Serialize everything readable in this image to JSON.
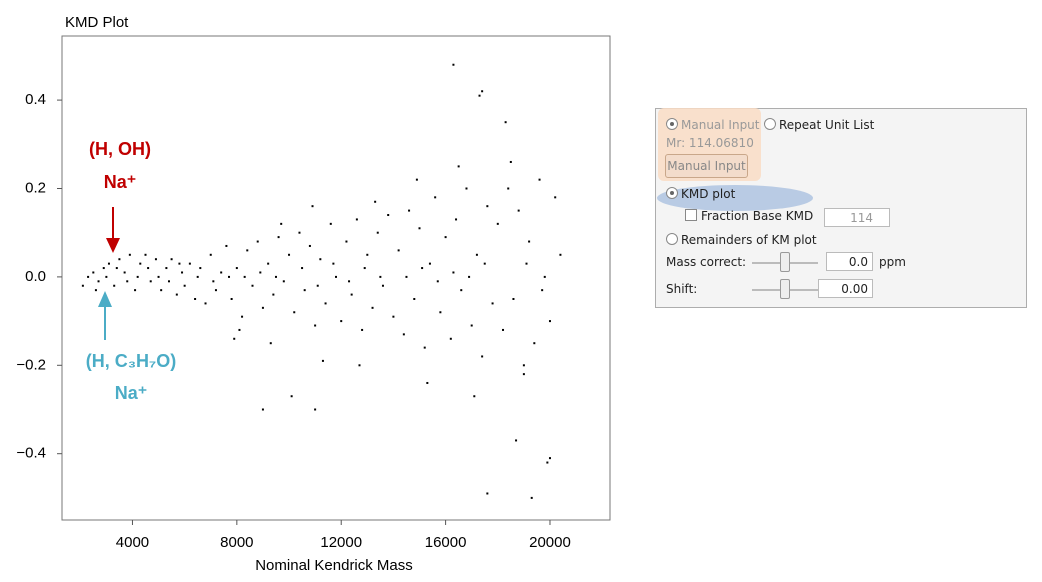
{
  "chart_data": {
    "type": "scatter",
    "title": "KMD Plot",
    "xlabel": "Nominal Kendrick Mass",
    "color": "#000000",
    "xlim": [
      1300,
      22300
    ],
    "ylim": [
      -0.55,
      0.545
    ],
    "xticks": [
      4000,
      8000,
      12000,
      16000,
      20000
    ],
    "yticks": [
      {
        "value": -0.4,
        "label": "−0.4"
      },
      {
        "value": -0.2,
        "label": "−0.2"
      },
      {
        "value": 0,
        "label": "0.0"
      },
      0.2,
      0.4
    ],
    "annotations": [
      {
        "text": "(H, OH)",
        "color": "#c00000"
      },
      {
        "text": "Na⁺",
        "color": "#c00000"
      },
      {
        "text": "(H, C₃H₇O)",
        "color": "#4bacc6"
      },
      {
        "text": "Na⁺",
        "color": "#4bacc6"
      }
    ],
    "x": [
      2100,
      2300,
      2500,
      2700,
      2900,
      3100,
      3300,
      3500,
      3700,
      3900,
      4100,
      4300,
      4500,
      4700,
      4900,
      5100,
      5300,
      5500,
      5700,
      5900,
      2600,
      3000,
      3400,
      3800,
      4200,
      4600,
      5000,
      5400,
      5800,
      6000,
      6200,
      6400,
      6600,
      6800,
      7000,
      7200,
      7400,
      7600,
      7800,
      8000,
      8200,
      8400,
      8600,
      8800,
      9000,
      9200,
      9400,
      9600,
      9800,
      10000,
      6500,
      7100,
      7700,
      8300,
      8900,
      9500,
      8100,
      7900,
      9300,
      9700,
      10200,
      10400,
      10600,
      10800,
      11000,
      11200,
      11400,
      11600,
      11800,
      12000,
      12200,
      12400,
      12600,
      12800,
      13000,
      13200,
      13400,
      13600,
      13800,
      14000,
      10500,
      11100,
      11700,
      12300,
      12900,
      13500,
      11300,
      12700,
      10900,
      13300,
      14200,
      14400,
      14600,
      14800,
      15000,
      15200,
      15400,
      15600,
      15800,
      16000,
      16200,
      16400,
      16600,
      16800,
      17000,
      17200,
      17400,
      17600,
      17800,
      18000,
      14500,
      15100,
      15700,
      16300,
      16900,
      17500,
      15300,
      16500,
      17100,
      14900,
      18200,
      18400,
      18600,
      18800,
      19000,
      19200,
      19400,
      19600,
      19800,
      20000,
      20200,
      20400,
      18500,
      19100,
      19700,
      16300,
      17400,
      17300,
      18300,
      17600,
      19300,
      19900,
      20000,
      18700,
      9000,
      11000,
      10100,
      19000
    ],
    "y": [
      -0.02,
      0,
      0.01,
      -0.01,
      0.02,
      0.03,
      -0.02,
      0.04,
      0.01,
      0.05,
      -0.03,
      0.03,
      0.05,
      -0.01,
      0.04,
      -0.03,
      0.02,
      0.04,
      -0.04,
      0.01,
      -0.03,
      0,
      0.02,
      -0.01,
      0,
      0.02,
      0,
      -0.01,
      0.03,
      -0.02,
      0.03,
      -0.05,
      0.02,
      -0.06,
      0.05,
      -0.03,
      0.01,
      0.07,
      -0.05,
      0.02,
      -0.09,
      0.06,
      -0.02,
      0.08,
      -0.07,
      0.03,
      -0.04,
      0.09,
      -0.01,
      0.05,
      0,
      -0.01,
      0,
      0,
      0.01,
      0,
      -0.12,
      -0.14,
      -0.15,
      0.12,
      -0.08,
      0.1,
      -0.03,
      0.07,
      -0.11,
      0.04,
      -0.06,
      0.12,
      0,
      -0.1,
      0.08,
      -0.04,
      0.13,
      -0.12,
      0.05,
      -0.07,
      0.1,
      -0.02,
      0.14,
      -0.09,
      0.02,
      -0.02,
      0.03,
      -0.01,
      0.02,
      0,
      -0.19,
      -0.2,
      0.16,
      0.17,
      0.06,
      -0.13,
      0.15,
      -0.05,
      0.11,
      -0.16,
      0.03,
      0.18,
      -0.08,
      0.09,
      -0.14,
      0.13,
      -0.03,
      0.2,
      -0.11,
      0.05,
      -0.18,
      0.16,
      -0.06,
      0.12,
      0,
      0.02,
      -0.01,
      0.01,
      0,
      0.03,
      -0.24,
      0.25,
      -0.27,
      0.22,
      -0.12,
      0.2,
      -0.05,
      0.15,
      -0.2,
      0.08,
      -0.15,
      0.22,
      0,
      -0.1,
      0.18,
      0.05,
      0.26,
      0.03,
      -0.03,
      0.48,
      0.42,
      0.41,
      0.35,
      -0.49,
      -0.5,
      -0.42,
      -0.41,
      -0.37,
      -0.3,
      -0.3,
      -0.27,
      -0.22
    ]
  },
  "panel": {
    "manual_input_radio": "Manual Input",
    "repeat_unit_radio": "Repeat Unit List",
    "mr": "Mr: 114.06810",
    "manual_input_button": "Manual Input",
    "kmd_plot_radio": "KMD plot",
    "fraction_base_checkbox": "Fraction Base KMD",
    "fraction_base_value": "114",
    "remainders_radio": "Remainders of KM plot",
    "mass_correct_label": "Mass correct:",
    "mass_correct_value": "0.0",
    "mass_correct_unit": "ppm",
    "shift_label": "Shift:",
    "shift_value": "0.00"
  }
}
